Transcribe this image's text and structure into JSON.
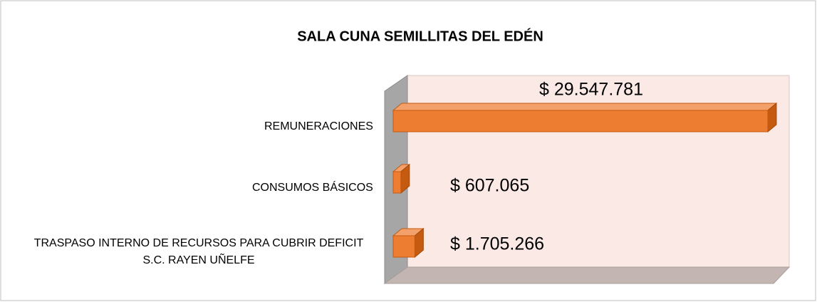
{
  "chart_data": {
    "type": "bar3d",
    "orientation": "horizontal",
    "title": "SALA CUNA SEMILLITAS DEL EDÉN",
    "categories": [
      "REMUNERACIONES",
      "CONSUMOS BÁSICOS",
      "TRASPASO INTERNO DE RECURSOS PARA CUBRIR DEFICIT S.C. RAYEN UÑELFE"
    ],
    "values": [
      29547781,
      607065,
      1705266
    ],
    "value_labels": [
      "$  29.547.781",
      "$  607.065",
      "$  1.705.266"
    ],
    "color": "#ed7d31",
    "xlim": [
      0,
      30000000
    ]
  }
}
